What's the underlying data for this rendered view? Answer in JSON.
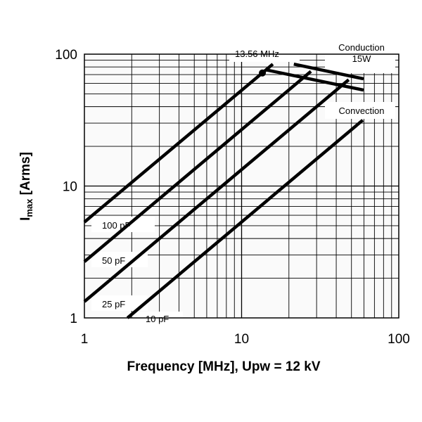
{
  "chart_data": {
    "type": "line",
    "xscale": "log",
    "yscale": "log",
    "xlim": [
      1,
      100
    ],
    "ylim": [
      1,
      100
    ],
    "grid": true,
    "xlabel": "Frequency [MHz], Upw = 12 kV",
    "ylabel": {
      "main": "I",
      "sub": "max",
      "unit": " [Arms]"
    },
    "xticks": [
      {
        "v": 1,
        "label": "1"
      },
      {
        "v": 10,
        "label": "10"
      },
      {
        "v": 100,
        "label": "100"
      }
    ],
    "yticks": [
      {
        "v": 1,
        "label": "1"
      },
      {
        "v": 10,
        "label": "10"
      },
      {
        "v": 100,
        "label": "100"
      }
    ],
    "series": [
      {
        "name": "100 pF",
        "x": [
          1,
          15.8
        ],
        "y": [
          5.33,
          84
        ]
      },
      {
        "name": "50 pF",
        "x": [
          1,
          27.6
        ],
        "y": [
          2.67,
          74
        ]
      },
      {
        "name": "25 pF",
        "x": [
          1,
          48
        ],
        "y": [
          1.33,
          64
        ]
      },
      {
        "name": "10 pF",
        "x": [
          1.88,
          59
        ],
        "y": [
          1,
          31.6
        ]
      },
      {
        "name": "Conduction 15W",
        "x": [
          21.5,
          59.7
        ],
        "y": [
          84,
          65
        ]
      },
      {
        "name": "Convection",
        "x": [
          14.1,
          59.7
        ],
        "y": [
          76.3,
          53.4
        ]
      }
    ],
    "annotations": [
      {
        "text": "13.56 MHz",
        "x": 13.56,
        "y": 72,
        "marker": "dot"
      },
      {
        "text": "Conduction",
        "text2": "15W"
      },
      {
        "text": "Convection"
      }
    ],
    "colors": {
      "line": "#000000",
      "grid": "#000000",
      "plot_bg": "#fafafa"
    }
  }
}
